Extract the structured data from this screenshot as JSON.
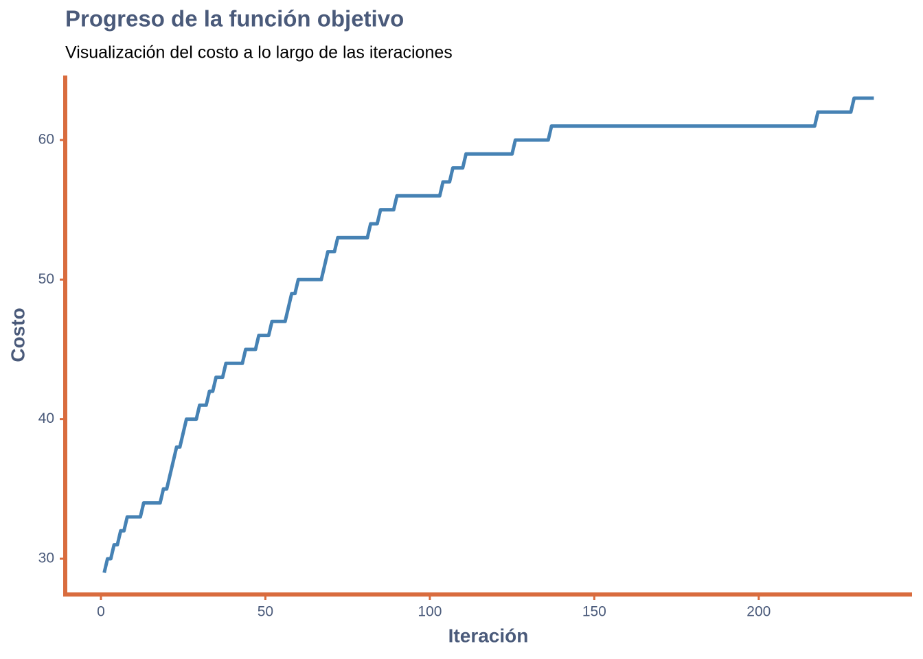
{
  "chart_data": {
    "type": "line",
    "title": "Progreso de la función objetivo",
    "subtitle": "Visualización del costo a lo largo de las iteraciones",
    "x_label": "Iteración",
    "y_label": "Costo",
    "xlim": [
      -10.85,
      246.6
    ],
    "ylim": [
      27.44,
      64.62
    ],
    "xticks": [
      0,
      50,
      100,
      150,
      200
    ],
    "yticks": [
      30,
      40,
      50,
      60
    ],
    "grid": false,
    "axis_color": "#d96c3e",
    "x": [
      1,
      2,
      3,
      4,
      5,
      6,
      7,
      8,
      12,
      13,
      18,
      19,
      20,
      23,
      24,
      26,
      29,
      30,
      32,
      33,
      34,
      35,
      37,
      38,
      43,
      44,
      47,
      48,
      51,
      52,
      56,
      58,
      59,
      60,
      67,
      69,
      71,
      72,
      81,
      82,
      84,
      85,
      89,
      90,
      103,
      104,
      106,
      107,
      110,
      111,
      125,
      126,
      136,
      137,
      217,
      218,
      228,
      229,
      235
    ],
    "series": [
      {
        "name": "Costo",
        "color": "#4682b4",
        "values": [
          29,
          30,
          30,
          31,
          31,
          32,
          32,
          33,
          33,
          34,
          34,
          35,
          35,
          38,
          38,
          40,
          40,
          41,
          41,
          42,
          42,
          43,
          43,
          44,
          44,
          45,
          45,
          46,
          46,
          47,
          47,
          49,
          49,
          50,
          50,
          52,
          52,
          53,
          53,
          54,
          54,
          55,
          55,
          56,
          56,
          57,
          57,
          58,
          58,
          59,
          59,
          60,
          60,
          61,
          61,
          62,
          62,
          63,
          63
        ]
      }
    ]
  }
}
